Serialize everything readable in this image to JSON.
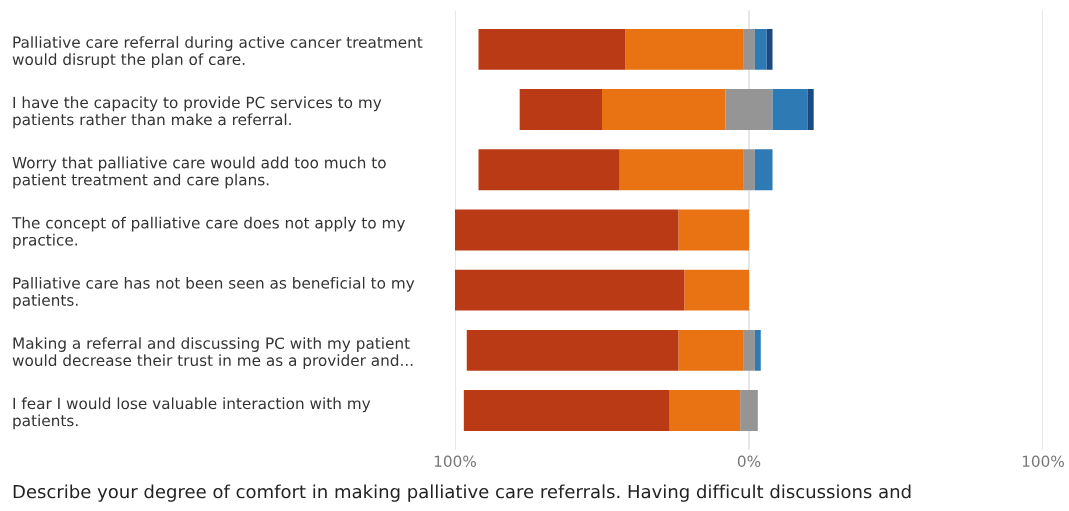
{
  "chart_data": {
    "type": "bar",
    "orientation": "horizontal",
    "stacked": true,
    "categories": [
      "Palliative care referral during active cancer treatment would disrupt the plan of care.",
      "I have the capacity to provide PC services to my patients rather than make a referral.",
      "Worry that palliative care would add too much to patient treatment and care plans.",
      "The concept of palliative care does not apply to my practice.",
      "Palliative care has not been seen as beneficial to my patients.",
      "Making a referral and discussing PC with my patient would decrease their trust in me as a provider and...",
      "I fear I would lose valuable interaction with my patients."
    ],
    "series": [
      {
        "color": "#959595",
        "values": [
          -2,
          -8,
          -2,
          null,
          null,
          -2,
          -3
        ]
      },
      {
        "color": "#e97212",
        "values": [
          -40,
          -42,
          -42,
          -24,
          -22,
          -22,
          -24
        ]
      },
      {
        "color": "#bb3a16",
        "values": [
          -50,
          -28,
          -48,
          -76,
          -78,
          -72,
          -70
        ]
      },
      {
        "color": "#959595",
        "values": [
          2,
          8,
          2,
          null,
          null,
          2,
          3
        ]
      },
      {
        "color": "#2e7ab5",
        "values": [
          4,
          12,
          6,
          null,
          null,
          2,
          null
        ]
      },
      {
        "color": "#1a4a80",
        "values": [
          2,
          2,
          null,
          null,
          null,
          null,
          null
        ]
      }
    ],
    "xlim": [
      -100,
      100
    ],
    "xticks": [
      {
        "value": -100,
        "label": "100%"
      },
      {
        "value": 0,
        "label": "0%"
      },
      {
        "value": 100,
        "label": "100%"
      }
    ],
    "grid": "x",
    "annotations": [
      "Describe your degree of comfort in making palliative care referrals. Having difficult discussions and"
    ]
  }
}
